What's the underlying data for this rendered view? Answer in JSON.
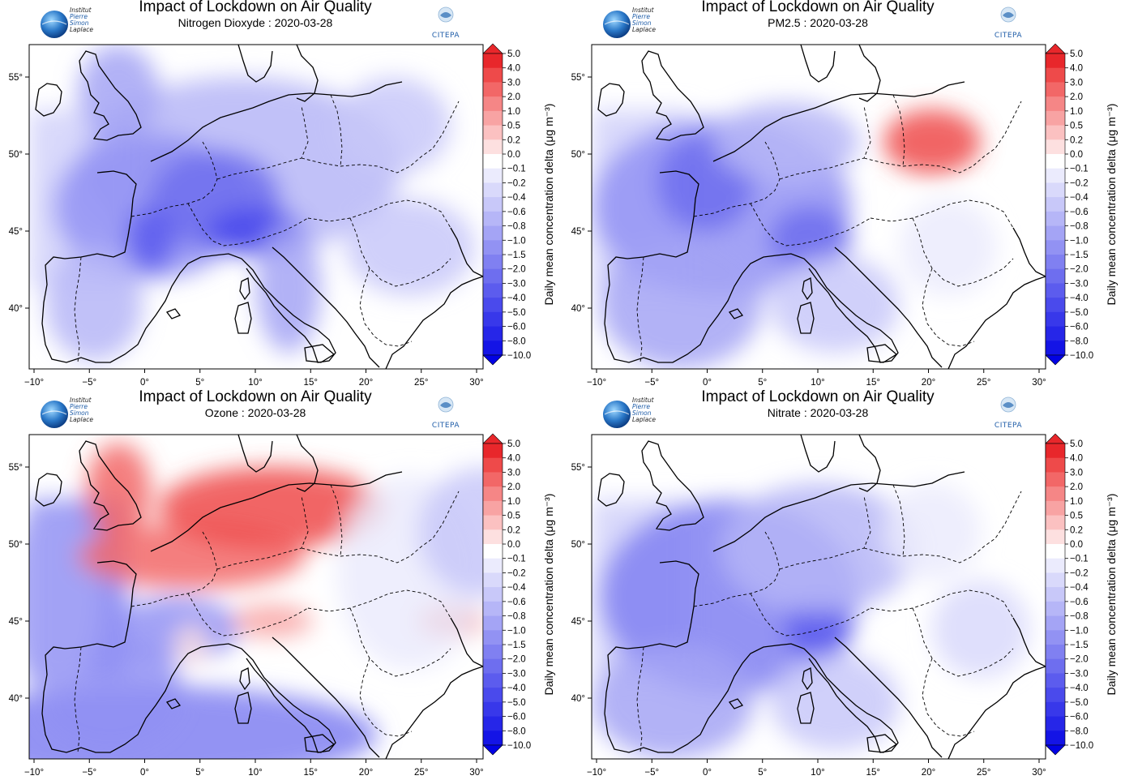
{
  "colorbar": {
    "title": "Daily mean concentration delta (μg m⁻³)",
    "ticks": [
      "5.0",
      "4.0",
      "3.0",
      "2.0",
      "1.0",
      "0.5",
      "0.2",
      "0.0",
      "−0.1",
      "−0.2",
      "−0.4",
      "−0.6",
      "−0.8",
      "−1.0",
      "−1.5",
      "−2.0",
      "−3.0",
      "−4.0",
      "−5.0",
      "−6.0",
      "−8.0",
      "−10.0"
    ],
    "colors_pos": [
      "#e8272b",
      "#ee4a4a",
      "#f26767",
      "#f58686",
      "#f8a3a3",
      "#fbc1c1",
      "#fde0e0"
    ],
    "colors_neg": [
      "#ffffff",
      "#ebebfd",
      "#d9d9fb",
      "#c8c8f9",
      "#b6b6f7",
      "#a4a4f5",
      "#9292f3",
      "#8080f1",
      "#6e6eef",
      "#5c5cee",
      "#4a4aec",
      "#3838ea",
      "#2626e8",
      "#1414e6",
      "#0202e4"
    ]
  },
  "axes": {
    "lon_ticks": [
      "−10°",
      "−5°",
      "0°",
      "5°",
      "10°",
      "15°",
      "20°",
      "25°",
      "30°"
    ],
    "lat_ticks": [
      "55°",
      "50°",
      "45°",
      "40°"
    ]
  },
  "logos": {
    "ipsl_text": [
      "Institut",
      "Pierre",
      "Simon",
      "Laplace"
    ],
    "citepa_text": "CITEPA"
  },
  "panels": [
    {
      "title": "Impact of Lockdown on Air Quality",
      "subtitle": "Nitrogen Dioxyde : 2020-03-28",
      "species": "no2"
    },
    {
      "title": "Impact of Lockdown on Air Quality",
      "subtitle": "PM2.5 : 2020-03-28",
      "species": "pm25"
    },
    {
      "title": "Impact of Lockdown on Air Quality",
      "subtitle": "Ozone : 2020-03-28",
      "species": "o3"
    },
    {
      "title": "Impact of Lockdown on Air Quality",
      "subtitle": "Nitrate : 2020-03-28",
      "species": "no3"
    }
  ]
}
